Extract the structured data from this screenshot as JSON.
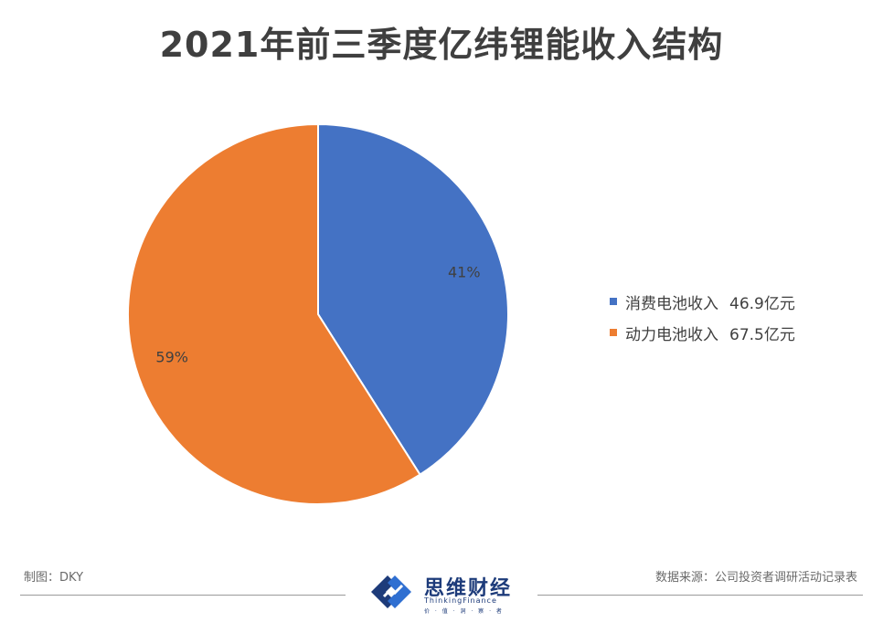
{
  "chart_data": {
    "type": "pie",
    "title": "2021年前三季度亿纬锂能收入结构",
    "slices": [
      {
        "label": "消费电池收入",
        "value_label": "46.9亿元",
        "value": 46.9,
        "percent_label": "41%",
        "color": "#4472C4"
      },
      {
        "label": "动力电池收入",
        "value_label": "67.5亿元",
        "value": 67.5,
        "percent_label": "59%",
        "color": "#ED7D31"
      }
    ],
    "legend_position": "right"
  },
  "footer": {
    "maker": "制图：DKY",
    "source": "数据来源：公司投资者调研活动记录表",
    "logo_name": "思维财经",
    "logo_subtitle": "ThinkingFinance",
    "logo_tagline": "价 · 值 · 洞 · 察 · 者"
  }
}
